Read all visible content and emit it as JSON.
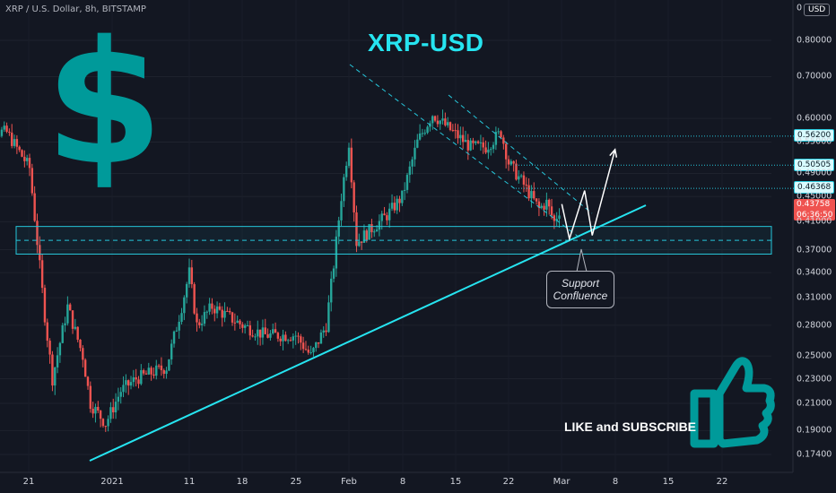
{
  "header": {
    "symbol_line": "XRP / U.S. Dollar, 8h, BITSTAMP",
    "currency": "USD"
  },
  "colors": {
    "background": "#131722",
    "up": "#26a69a",
    "down": "#ef5350",
    "accent": "#26c6da",
    "price_tag": "#ef5350",
    "thumb": "#009a9a"
  },
  "annotations": {
    "title": "XRP-USD",
    "dollar_sign": "$",
    "support_callout_line1": "Support",
    "support_callout_line2": "Confluence",
    "like_text": "LIKE and SUBSCRIBE"
  },
  "price_tags": {
    "level1": "0.56200",
    "level2": "0.50505",
    "level3": "0.46368",
    "current_price": "0.43758",
    "countdown": "06:36:50"
  },
  "chart_data": {
    "type": "candlestick",
    "title": "XRP-USD",
    "y_scale": "log",
    "ylim": [
      0.16,
      1.05
    ],
    "y_ticks": [
      "0.80000",
      "0.70000",
      "0.60000",
      "0.55000",
      "0.49000",
      "0.45000",
      "0.41000",
      "0.37000",
      "0.34000",
      "0.31000",
      "0.28000",
      "0.25000",
      "0.23000",
      "0.21000",
      "0.19000",
      "0.17400"
    ],
    "y_top_label": "0",
    "x_ticks": [
      "21",
      "2021",
      "11",
      "18",
      "25",
      "Feb",
      "8",
      "15",
      "22",
      "Mar",
      "8",
      "15",
      "22"
    ],
    "path": [
      [
        "2020-12-14",
        0.575
      ],
      [
        "2020-12-18",
        0.57
      ],
      [
        "2020-12-21",
        0.5
      ],
      [
        "2020-12-23",
        0.29
      ],
      [
        "2020-12-24",
        0.23
      ],
      [
        "2020-12-26",
        0.3
      ],
      [
        "2020-12-28",
        0.25
      ],
      [
        "2020-12-29",
        0.21
      ],
      [
        "2020-12-31",
        0.195
      ],
      [
        "2021-01-02",
        0.22
      ],
      [
        "2021-01-04",
        0.23
      ],
      [
        "2021-01-08",
        0.24
      ],
      [
        "2021-01-10",
        0.3
      ],
      [
        "2021-01-11",
        0.34
      ],
      [
        "2021-01-12",
        0.28
      ],
      [
        "2021-01-14",
        0.3
      ],
      [
        "2021-01-18",
        0.28
      ],
      [
        "2021-01-21",
        0.27
      ],
      [
        "2021-01-25",
        0.27
      ],
      [
        "2021-01-27",
        0.25
      ],
      [
        "2021-01-29",
        0.28
      ],
      [
        "2021-01-30",
        0.35
      ],
      [
        "2021-01-31",
        0.45
      ],
      [
        "2021-02-01",
        0.55
      ],
      [
        "2021-02-02",
        0.38
      ],
      [
        "2021-02-04",
        0.4
      ],
      [
        "2021-02-06",
        0.42
      ],
      [
        "2021-02-08",
        0.45
      ],
      [
        "2021-02-10",
        0.55
      ],
      [
        "2021-02-12",
        0.61
      ],
      [
        "2021-02-14",
        0.58
      ],
      [
        "2021-02-17",
        0.54
      ],
      [
        "2021-02-19",
        0.54
      ],
      [
        "2021-02-21",
        0.57
      ],
      [
        "2021-02-22",
        0.51
      ],
      [
        "2021-02-24",
        0.47
      ],
      [
        "2021-02-26",
        0.43
      ],
      [
        "2021-02-27",
        0.44
      ],
      [
        "2021-02-28",
        0.41
      ],
      [
        "2021-03-01",
        0.4376
      ]
    ],
    "support_zone": [
      0.364,
      0.403
    ],
    "support_mid": 0.383,
    "levels": [
      0.562,
      0.50505,
      0.46368
    ],
    "current_price": 0.43758,
    "projection": [
      [
        "2021-03-01",
        0.4376
      ],
      [
        "2021-03-02",
        0.385
      ],
      [
        "2021-03-04",
        0.46
      ],
      [
        "2021-03-05",
        0.39
      ],
      [
        "2021-03-08",
        0.535
      ]
    ]
  }
}
